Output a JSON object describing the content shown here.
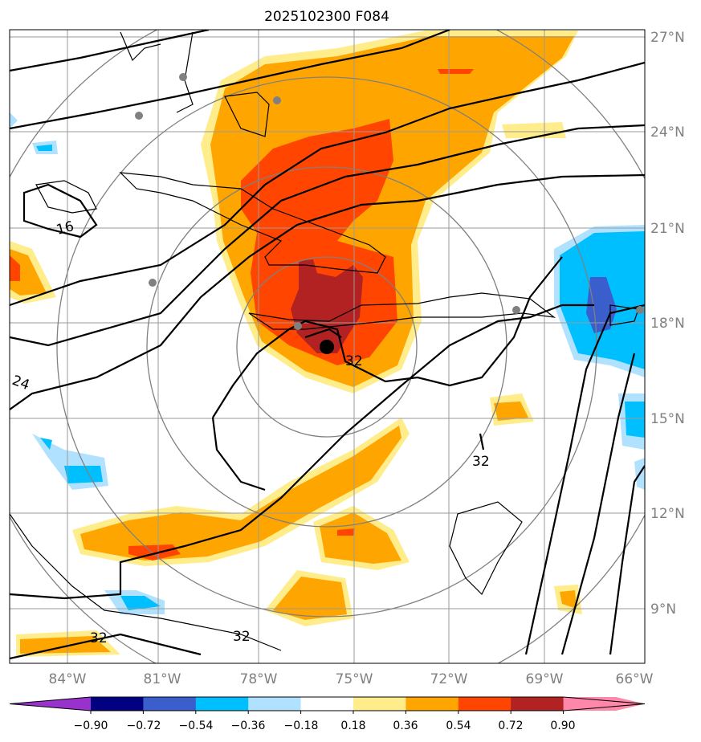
{
  "title": "2025102300 F084",
  "lon_labels": [
    "84°W",
    "81°W",
    "78°W",
    "75°W",
    "72°W",
    "69°W",
    "66°W"
  ],
  "lat_labels": [
    "27°N",
    "24°N",
    "21°N",
    "18°N",
    "15°N",
    "12°N",
    "9°N"
  ],
  "contour_labels": [
    "16",
    "24",
    "32",
    "32",
    "32",
    "32"
  ],
  "colorbar": {
    "ticks": [
      "−0.90",
      "−0.72",
      "−0.54",
      "−0.36",
      "−0.18",
      "0.18",
      "0.36",
      "0.54",
      "0.72",
      "0.90"
    ],
    "colors": [
      "#9932CC",
      "#000080",
      "#3A5FCD",
      "#00BFFF",
      "#B0E2FF",
      "#FFFFFF",
      "#FFEC8B",
      "#FFA500",
      "#FF4500",
      "#B22222",
      "#FF88AA"
    ]
  }
}
